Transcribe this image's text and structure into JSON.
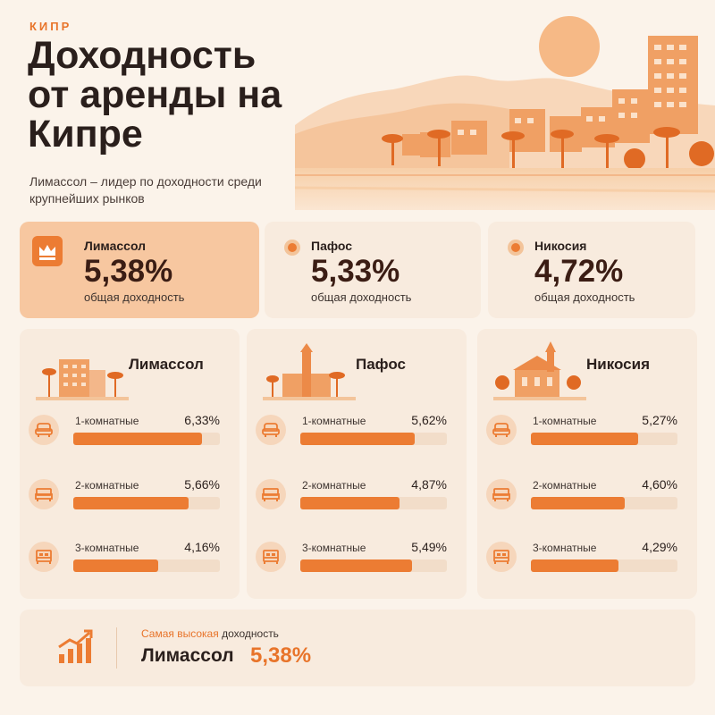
{
  "header": {
    "kicker": "КИПР",
    "title": "Доходность от аренды на Кипре",
    "subtitle": "Лимассол – лидер по доходности среди крупнейших рынков"
  },
  "summary": [
    {
      "city": "Лимассол",
      "value": "5,38%",
      "label": "общая доходность",
      "icon": "crown-icon"
    },
    {
      "city": "Пафос",
      "value": "5,33%",
      "label": "общая доходность",
      "icon": "dot-icon"
    },
    {
      "city": "Никосия",
      "value": "4,72%",
      "label": "общая доходность",
      "icon": "dot-icon"
    }
  ],
  "chart_data": {
    "type": "bar",
    "orientation": "horizontal",
    "categories": [
      "1-комнатные",
      "2-комнатные",
      "3-комнатные"
    ],
    "series": [
      {
        "name": "Лимассол",
        "values": [
          6.33,
          5.66,
          4.16
        ],
        "labels": [
          "6,33%",
          "5,66%",
          "4,16%"
        ]
      },
      {
        "name": "Пафос",
        "values": [
          5.62,
          4.87,
          5.49
        ],
        "labels": [
          "5,62%",
          "4,87%",
          "5,49%"
        ]
      },
      {
        "name": "Никосия",
        "values": [
          5.27,
          4.6,
          4.29
        ],
        "labels": [
          "5,27%",
          "4,60%",
          "4,29%"
        ]
      }
    ],
    "xlim": [
      0,
      7.2
    ],
    "legend": "none",
    "grid": false
  },
  "footer": {
    "prefix_highlight": "Самая высокая",
    "prefix_rest": " доходность",
    "city": "Лимассол",
    "value": "5,38%"
  },
  "colors": {
    "accent": "#ec7c33",
    "background": "#fbf3ea",
    "card": "#f8ebde",
    "lead_card": "#f7c7a0",
    "track": "#f2ddc9"
  }
}
